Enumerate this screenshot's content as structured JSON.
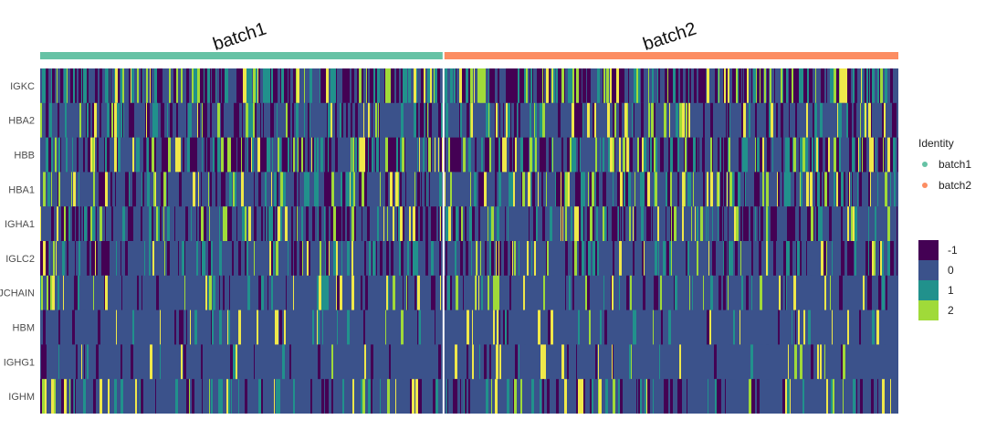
{
  "chart_data": {
    "type": "heatmap",
    "genes": [
      "IGKC",
      "HBA2",
      "HBB",
      "HBA1",
      "IGHA1",
      "IGLC2",
      "JCHAIN",
      "HBM",
      "IGHG1",
      "IGHM"
    ],
    "groups": [
      {
        "name": "batch1",
        "color": "#66c2a5"
      },
      {
        "name": "batch2",
        "color": "#fc8d62"
      }
    ],
    "group_fraction": [
      0.47,
      0.53
    ],
    "legend_identity": {
      "title": "Identity",
      "items": [
        "batch1",
        "batch2"
      ]
    },
    "color_scale": {
      "values": [
        "-1",
        "0",
        "1",
        "2"
      ],
      "colors": [
        "#440154",
        "#3b528b",
        "#21918c",
        "#a0da39"
      ],
      "highlight": "#f0e84a",
      "range": [
        -1,
        2.5
      ]
    },
    "gene_density": {
      "IGKC": 0.95,
      "HBA2": 0.6,
      "HBB": 0.8,
      "HBA1": 0.55,
      "IGHA1": 0.55,
      "IGLC2": 0.55,
      "JCHAIN": 0.3,
      "HBM": 0.15,
      "IGHG1": 0.15,
      "IGHM": 0.35
    }
  }
}
